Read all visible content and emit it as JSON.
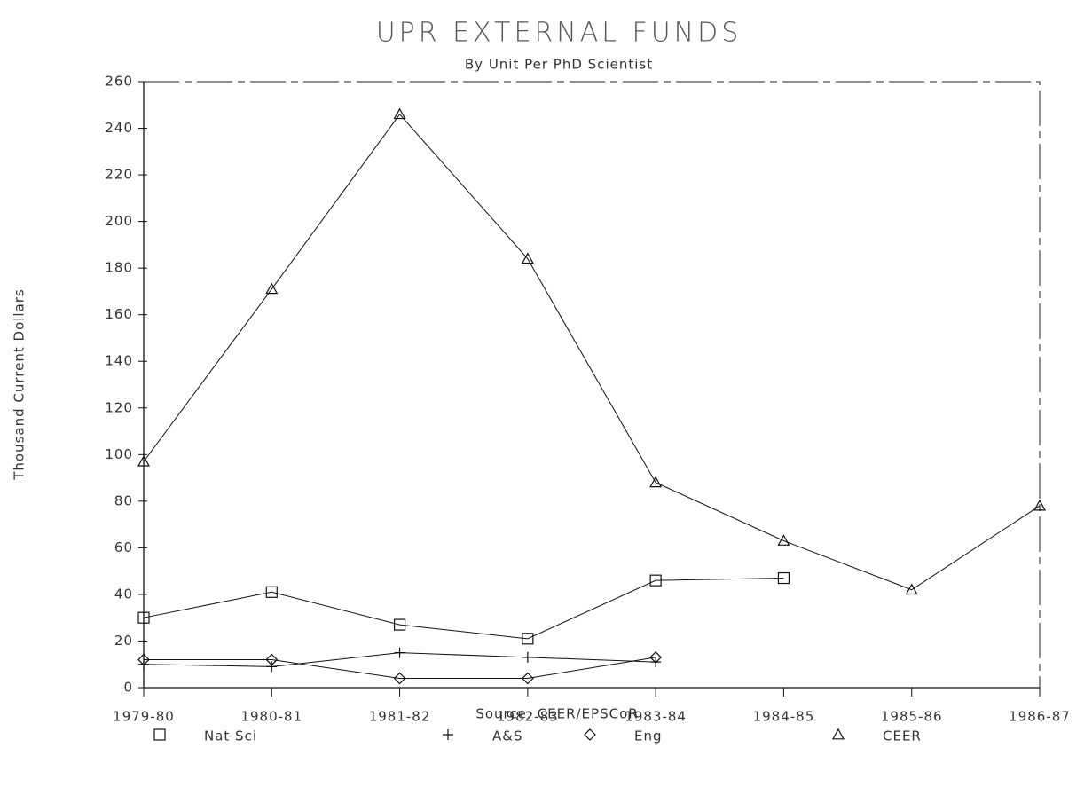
{
  "chart_data": {
    "type": "line",
    "title": "UPR EXTERNAL FUNDS",
    "subtitle": "By Unit Per PhD Scientist",
    "y_label": "Thousand Current Dollars",
    "source": "Source: CEER/EPSCoR",
    "categories": [
      "1979-80",
      "1980-81",
      "1981-82",
      "1982-83",
      "1983-84",
      "1984-85",
      "1985-86",
      "1986-87"
    ],
    "series": [
      {
        "name": "Nat Sci",
        "marker": "square",
        "color": "#111",
        "values": [
          30,
          41,
          27,
          21,
          46,
          47,
          null,
          null
        ]
      },
      {
        "name": "A&S",
        "marker": "plus",
        "color": "#111",
        "values": [
          10,
          9,
          15,
          13,
          11,
          null,
          null,
          null
        ]
      },
      {
        "name": "Eng",
        "marker": "diamond",
        "color": "#111",
        "values": [
          12,
          12,
          4,
          4,
          13,
          null,
          null,
          null
        ]
      },
      {
        "name": "CEER",
        "marker": "triangle",
        "color": "#111",
        "values": [
          97,
          171,
          246,
          184,
          88,
          63,
          42,
          78
        ]
      }
    ],
    "ylim": [
      0,
      260
    ],
    "yticks": [
      0,
      20,
      40,
      60,
      80,
      100,
      120,
      140,
      160,
      180,
      200,
      220,
      240,
      260
    ],
    "grid": false
  }
}
